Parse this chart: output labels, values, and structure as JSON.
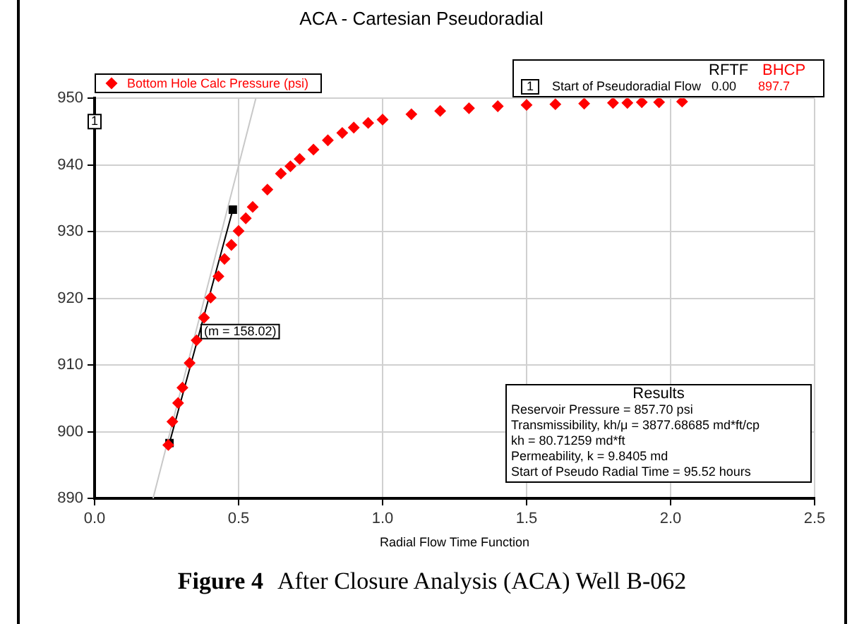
{
  "chart_data": {
    "type": "scatter",
    "title": "ACA - Cartesian Pseudoradial",
    "xlabel": "Radial Flow Time Function",
    "xlim": [
      0,
      2.5
    ],
    "ylim": [
      890,
      950
    ],
    "xticks": [
      {
        "value": 0,
        "label": "0.0"
      },
      0.5,
      {
        "value": 1,
        "label": "1.0"
      },
      1.5,
      {
        "value": 2,
        "label": "2.0"
      },
      2.5
    ],
    "yticks": [
      890,
      900,
      910,
      920,
      930,
      940,
      950
    ],
    "grid": true,
    "legend": "top left",
    "series": [
      {
        "name": "Bottom Hole Calc Pressure (psi)",
        "color": "#ff0000",
        "marker": "diamond",
        "x": [
          0.256,
          0.27,
          0.29,
          0.305,
          0.33,
          0.354,
          0.38,
          0.403,
          0.43,
          0.451,
          0.475,
          0.5,
          0.525,
          0.549,
          0.6,
          0.647,
          0.68,
          0.712,
          0.76,
          0.81,
          0.86,
          0.9,
          0.95,
          1.0,
          1.1,
          1.2,
          1.3,
          1.4,
          1.5,
          1.6,
          1.7,
          1.8,
          1.85,
          1.9,
          1.96,
          2.04
        ],
        "values": [
          898.0,
          901.5,
          904.3,
          906.6,
          910.3,
          913.7,
          917.1,
          920.1,
          923.3,
          925.9,
          928.0,
          930.1,
          932.0,
          933.7,
          936.3,
          938.7,
          939.8,
          940.9,
          942.3,
          943.7,
          944.8,
          945.6,
          946.3,
          946.8,
          947.6,
          948.1,
          948.5,
          948.8,
          949.0,
          949.1,
          949.2,
          949.3,
          949.3,
          949.4,
          949.4,
          949.5
        ]
      },
      {
        "type": "line",
        "color": "#c8c8c8",
        "marker": "none",
        "x": [
          0.203,
          0.56
        ],
        "values": [
          890,
          950
        ]
      },
      {
        "type": "line",
        "color": "#000000",
        "marker": "square",
        "x": [
          0.26,
          0.48
        ],
        "values": [
          898.3,
          933.3
        ]
      }
    ],
    "annotations": [
      "RFTF",
      "BHCP",
      "1",
      "Start of Pseudoradial Flow",
      "0.00",
      "897.7",
      "Results",
      "Reservoir Pressure = 857.70 psi",
      "Transmissibility, kh/μ = 3877.68685 md*ft/cp",
      "kh = 80.71259 md*ft",
      "Permeability, k = 9.8405 md",
      "Start of Pseudo Radial Time = 95.52 hours",
      "Figure 4",
      "After Closure Analysis (ACA) Well B-062",
      {
        "text": "1",
        "x": 0,
        "y": 946.5
      },
      {
        "text": "(m = 158.02)",
        "x": 0.37,
        "y": 915
      }
    ]
  }
}
